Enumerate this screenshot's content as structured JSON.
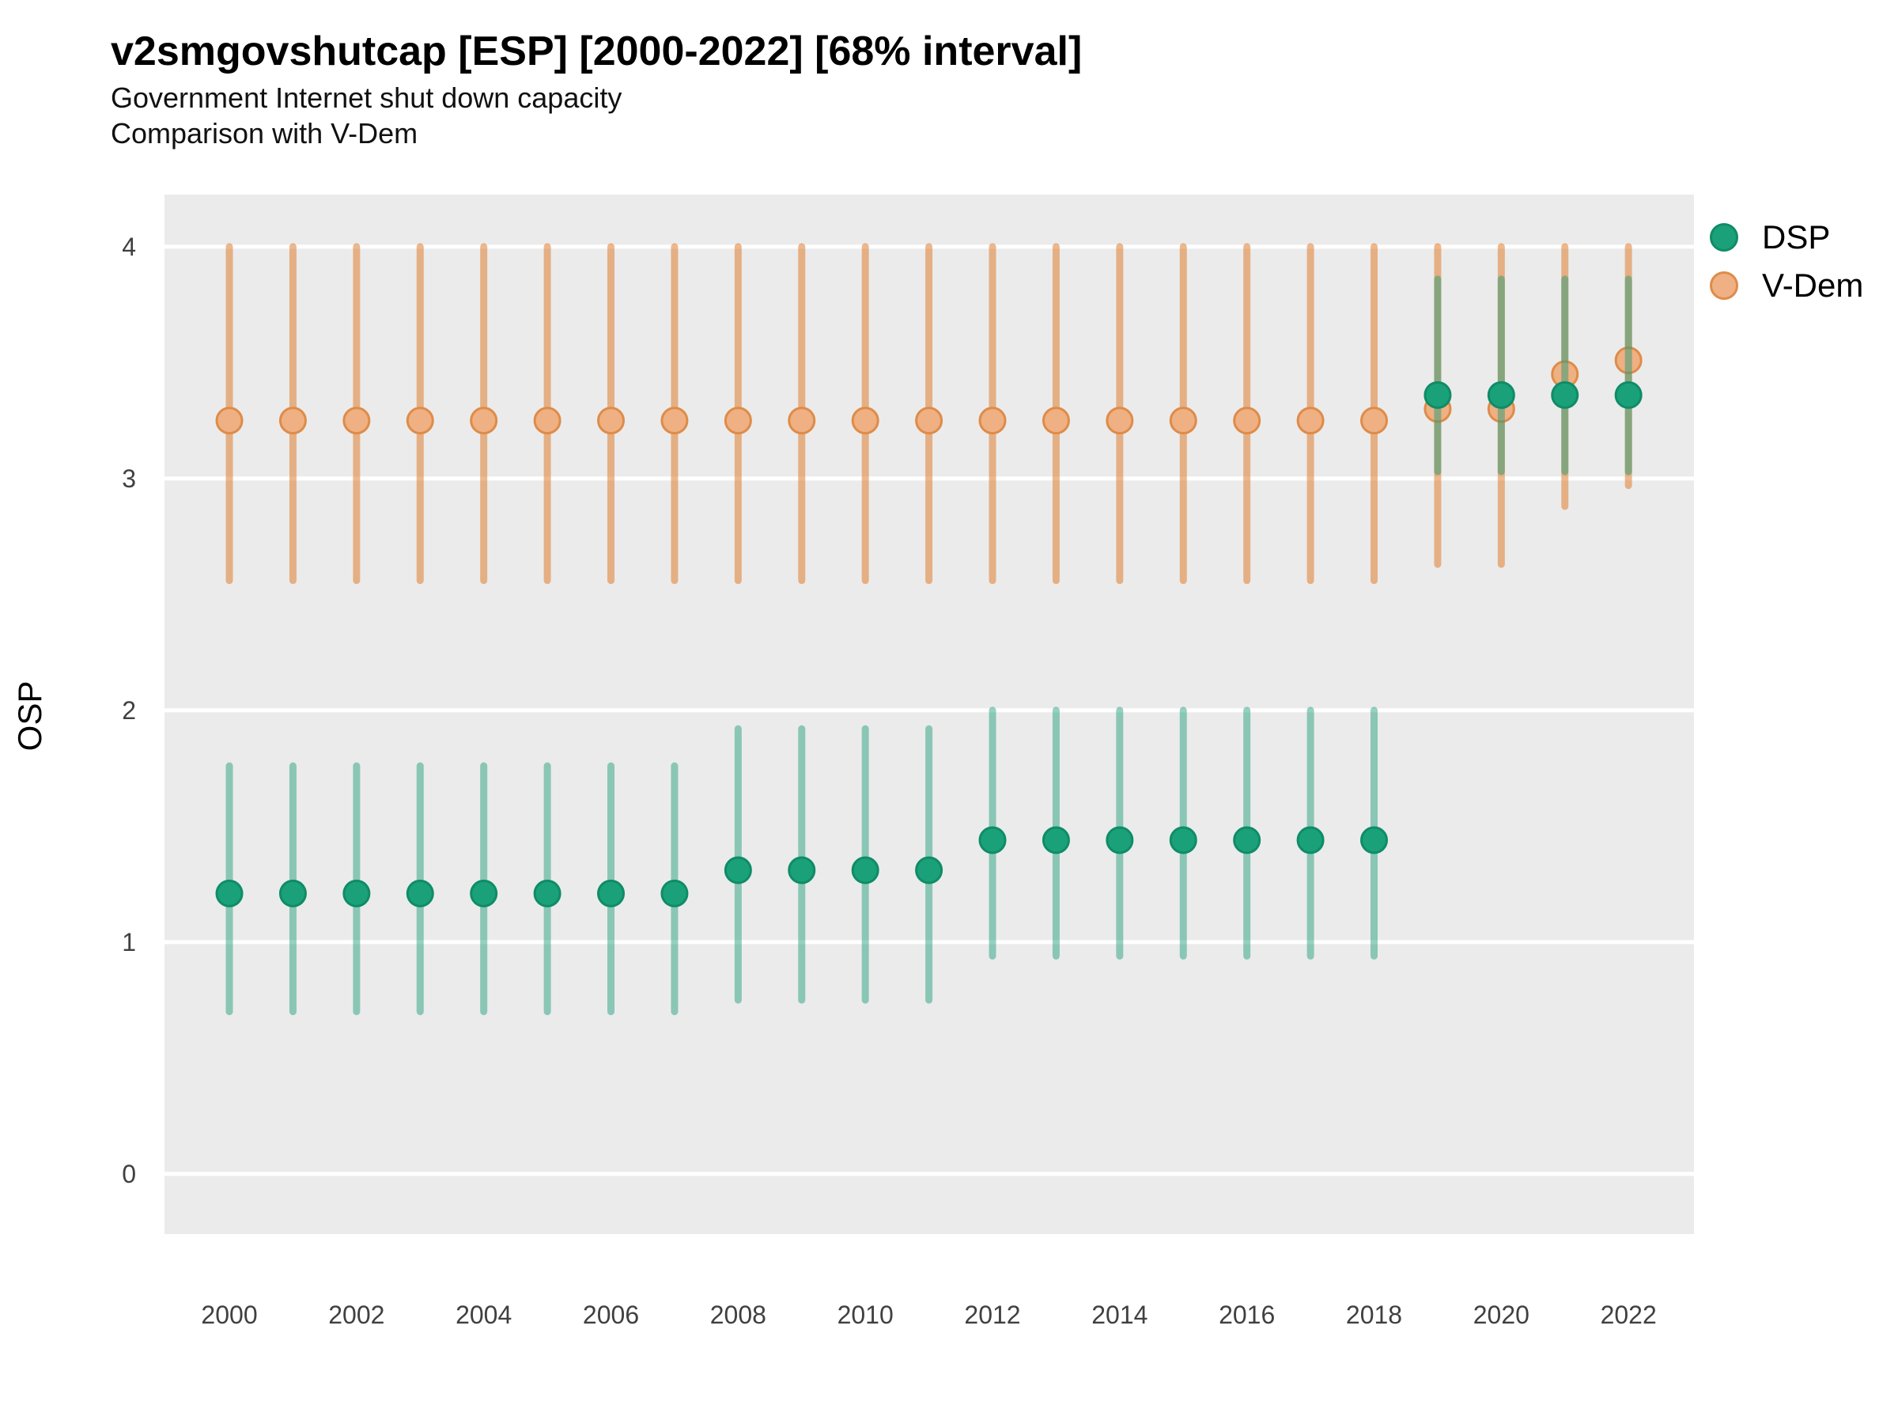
{
  "colors": {
    "page_background": "#FFFFFF",
    "panel_background": "#EBEBEB",
    "gridline": "#FFFFFF",
    "dsp_green": "#1AA179",
    "vdem_orange": "#E08C49",
    "tick_text": "#404040"
  },
  "chart_data": {
    "type": "scatter",
    "subtype": "pointrange-errorbar",
    "title": "v2smgovshutcap [ESP] [2000-2022] [68% interval]",
    "subtitle_lines": [
      "Government Internet shut down capacity",
      "Comparison with V-Dem"
    ],
    "xlabel": "",
    "ylabel": "OSP",
    "interval": "68%",
    "grid": "major-horizontal-only",
    "legend_position": "right",
    "xlim": [
      1998.98,
      2023.03
    ],
    "ylim": [
      -0.26,
      4.225
    ],
    "x_ticks": [
      2000,
      2002,
      2004,
      2006,
      2008,
      2010,
      2012,
      2014,
      2016,
      2018,
      2020,
      2022
    ],
    "y_ticks": [
      0,
      1,
      2,
      3,
      4
    ],
    "series": [
      {
        "name": "DSP",
        "z": 2,
        "point_fill": "#1AA179",
        "point_stroke": "#0F8C67",
        "bar_color": "rgba(20,154,115,0.45)",
        "points": [
          {
            "year": 2000,
            "est": 1.21,
            "lo": 0.7,
            "hi": 1.76
          },
          {
            "year": 2001,
            "est": 1.21,
            "lo": 0.7,
            "hi": 1.76
          },
          {
            "year": 2002,
            "est": 1.21,
            "lo": 0.7,
            "hi": 1.76
          },
          {
            "year": 2003,
            "est": 1.21,
            "lo": 0.7,
            "hi": 1.76
          },
          {
            "year": 2004,
            "est": 1.21,
            "lo": 0.7,
            "hi": 1.76
          },
          {
            "year": 2005,
            "est": 1.21,
            "lo": 0.7,
            "hi": 1.76
          },
          {
            "year": 2006,
            "est": 1.21,
            "lo": 0.7,
            "hi": 1.76
          },
          {
            "year": 2007,
            "est": 1.21,
            "lo": 0.7,
            "hi": 1.76
          },
          {
            "year": 2008,
            "est": 1.31,
            "lo": 0.75,
            "hi": 1.92
          },
          {
            "year": 2009,
            "est": 1.31,
            "lo": 0.75,
            "hi": 1.92
          },
          {
            "year": 2010,
            "est": 1.31,
            "lo": 0.75,
            "hi": 1.92
          },
          {
            "year": 2011,
            "est": 1.31,
            "lo": 0.75,
            "hi": 1.92
          },
          {
            "year": 2012,
            "est": 1.44,
            "lo": 0.94,
            "hi": 2.0
          },
          {
            "year": 2013,
            "est": 1.44,
            "lo": 0.94,
            "hi": 2.0
          },
          {
            "year": 2014,
            "est": 1.44,
            "lo": 0.94,
            "hi": 2.0
          },
          {
            "year": 2015,
            "est": 1.44,
            "lo": 0.94,
            "hi": 2.0
          },
          {
            "year": 2016,
            "est": 1.44,
            "lo": 0.94,
            "hi": 2.0
          },
          {
            "year": 2017,
            "est": 1.44,
            "lo": 0.94,
            "hi": 2.0
          },
          {
            "year": 2018,
            "est": 1.44,
            "lo": 0.94,
            "hi": 2.0
          },
          {
            "year": 2019,
            "est": 3.36,
            "lo": 3.03,
            "hi": 3.86
          },
          {
            "year": 2020,
            "est": 3.36,
            "lo": 3.03,
            "hi": 3.86
          },
          {
            "year": 2021,
            "est": 3.36,
            "lo": 3.03,
            "hi": 3.86
          },
          {
            "year": 2022,
            "est": 3.36,
            "lo": 3.03,
            "hi": 3.86
          }
        ]
      },
      {
        "name": "V-Dem",
        "z": 1,
        "point_fill": "#EFB083",
        "point_stroke": "#DE8C49",
        "bar_color": "rgba(224,125,47,0.55)",
        "points": [
          {
            "year": 2000,
            "est": 3.25,
            "lo": 2.56,
            "hi": 4.0
          },
          {
            "year": 2001,
            "est": 3.25,
            "lo": 2.56,
            "hi": 4.0
          },
          {
            "year": 2002,
            "est": 3.25,
            "lo": 2.56,
            "hi": 4.0
          },
          {
            "year": 2003,
            "est": 3.25,
            "lo": 2.56,
            "hi": 4.0
          },
          {
            "year": 2004,
            "est": 3.25,
            "lo": 2.56,
            "hi": 4.0
          },
          {
            "year": 2005,
            "est": 3.25,
            "lo": 2.56,
            "hi": 4.0
          },
          {
            "year": 2006,
            "est": 3.25,
            "lo": 2.56,
            "hi": 4.0
          },
          {
            "year": 2007,
            "est": 3.25,
            "lo": 2.56,
            "hi": 4.0
          },
          {
            "year": 2008,
            "est": 3.25,
            "lo": 2.56,
            "hi": 4.0
          },
          {
            "year": 2009,
            "est": 3.25,
            "lo": 2.56,
            "hi": 4.0
          },
          {
            "year": 2010,
            "est": 3.25,
            "lo": 2.56,
            "hi": 4.0
          },
          {
            "year": 2011,
            "est": 3.25,
            "lo": 2.56,
            "hi": 4.0
          },
          {
            "year": 2012,
            "est": 3.25,
            "lo": 2.56,
            "hi": 4.0
          },
          {
            "year": 2013,
            "est": 3.25,
            "lo": 2.56,
            "hi": 4.0
          },
          {
            "year": 2014,
            "est": 3.25,
            "lo": 2.56,
            "hi": 4.0
          },
          {
            "year": 2015,
            "est": 3.25,
            "lo": 2.56,
            "hi": 4.0
          },
          {
            "year": 2016,
            "est": 3.25,
            "lo": 2.56,
            "hi": 4.0
          },
          {
            "year": 2017,
            "est": 3.25,
            "lo": 2.56,
            "hi": 4.0
          },
          {
            "year": 2018,
            "est": 3.25,
            "lo": 2.56,
            "hi": 4.0
          },
          {
            "year": 2019,
            "est": 3.3,
            "lo": 2.63,
            "hi": 4.0
          },
          {
            "year": 2020,
            "est": 3.3,
            "lo": 2.63,
            "hi": 4.0
          },
          {
            "year": 2021,
            "est": 3.45,
            "lo": 2.88,
            "hi": 4.0
          },
          {
            "year": 2022,
            "est": 3.51,
            "lo": 2.97,
            "hi": 4.0
          }
        ]
      }
    ]
  }
}
